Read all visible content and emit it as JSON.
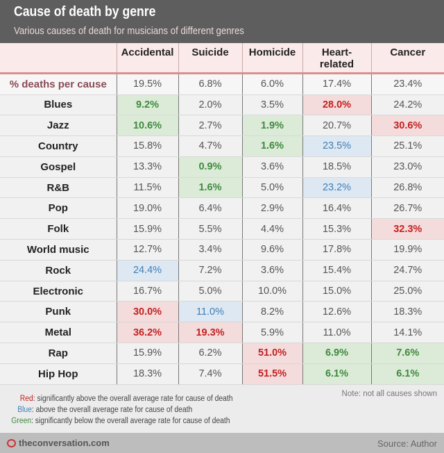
{
  "header": {
    "title": "Cause of death by genre",
    "subtitle": "Various causes of death for musicians of different genres"
  },
  "chart_data": {
    "type": "table",
    "columns": [
      "Accidental",
      "Suicide",
      "Homicide",
      "Heart-related",
      "Cancer"
    ],
    "average": {
      "label": "% deaths per cause",
      "values": [
        "19.5%",
        "6.8%",
        "6.0%",
        "17.4%",
        "23.4%"
      ]
    },
    "rows": [
      {
        "genre": "Blues",
        "values": [
          "9.2%",
          "2.0%",
          "3.5%",
          "28.0%",
          "24.2%"
        ],
        "highlight": [
          "g",
          "",
          "",
          "r",
          ""
        ]
      },
      {
        "genre": "Jazz",
        "values": [
          "10.6%",
          "2.7%",
          "1.9%",
          "20.7%",
          "30.6%"
        ],
        "highlight": [
          "g",
          "",
          "g",
          "",
          "r"
        ]
      },
      {
        "genre": "Country",
        "values": [
          "15.8%",
          "4.7%",
          "1.6%",
          "23.5%",
          "25.1%"
        ],
        "highlight": [
          "",
          "",
          "g",
          "b",
          ""
        ]
      },
      {
        "genre": "Gospel",
        "values": [
          "13.3%",
          "0.9%",
          "3.6%",
          "18.5%",
          "23.0%"
        ],
        "highlight": [
          "",
          "g",
          "",
          "",
          ""
        ]
      },
      {
        "genre": "R&B",
        "values": [
          "11.5%",
          "1.6%",
          "5.0%",
          "23.2%",
          "26.8%"
        ],
        "highlight": [
          "",
          "g",
          "",
          "b",
          ""
        ]
      },
      {
        "genre": "Pop",
        "values": [
          "19.0%",
          "6.4%",
          "2.9%",
          "16.4%",
          "26.7%"
        ],
        "highlight": [
          "",
          "",
          "",
          "",
          ""
        ]
      },
      {
        "genre": "Folk",
        "values": [
          "15.9%",
          "5.5%",
          "4.4%",
          "15.3%",
          "32.3%"
        ],
        "highlight": [
          "",
          "",
          "",
          "",
          "r"
        ]
      },
      {
        "genre": "World music",
        "values": [
          "12.7%",
          "3.4%",
          "9.6%",
          "17.8%",
          "19.9%"
        ],
        "highlight": [
          "",
          "",
          "",
          "",
          ""
        ]
      },
      {
        "genre": "Rock",
        "values": [
          "24.4%",
          "7.2%",
          "3.6%",
          "15.4%",
          "24.7%"
        ],
        "highlight": [
          "b",
          "",
          "",
          "",
          ""
        ]
      },
      {
        "genre": "Electronic",
        "values": [
          "16.7%",
          "5.0%",
          "10.0%",
          "15.0%",
          "25.0%"
        ],
        "highlight": [
          "",
          "",
          "",
          "",
          ""
        ]
      },
      {
        "genre": "Punk",
        "values": [
          "30.0%",
          "11.0%",
          "8.2%",
          "12.6%",
          "18.3%"
        ],
        "highlight": [
          "r",
          "b",
          "",
          "",
          ""
        ]
      },
      {
        "genre": "Metal",
        "values": [
          "36.2%",
          "19.3%",
          "5.9%",
          "11.0%",
          "14.1%"
        ],
        "highlight": [
          "r",
          "r",
          "",
          "",
          ""
        ]
      },
      {
        "genre": "Rap",
        "values": [
          "15.9%",
          "6.2%",
          "51.0%",
          "6.9%",
          "7.6%"
        ],
        "highlight": [
          "",
          "",
          "r",
          "g",
          "g"
        ]
      },
      {
        "genre": "Hip Hop",
        "values": [
          "18.3%",
          "7.4%",
          "51.5%",
          "6.1%",
          "6.1%"
        ],
        "highlight": [
          "",
          "",
          "r",
          "g",
          "g"
        ]
      }
    ]
  },
  "legend": [
    {
      "key": "Red",
      "text": ": significantly above the overall average rate for cause of death",
      "color": "#c52020"
    },
    {
      "key": "Blue",
      "text": ": above the overall average rate for cause of death",
      "color": "#3f7fb5"
    },
    {
      "key": "Green",
      "text": ": significantly below the overall average rate for cause of death",
      "color": "#3f8a3f"
    }
  ],
  "note": "Note: not all causes shown",
  "footer": {
    "site": "theconversation.com",
    "source": "Source: Author"
  }
}
